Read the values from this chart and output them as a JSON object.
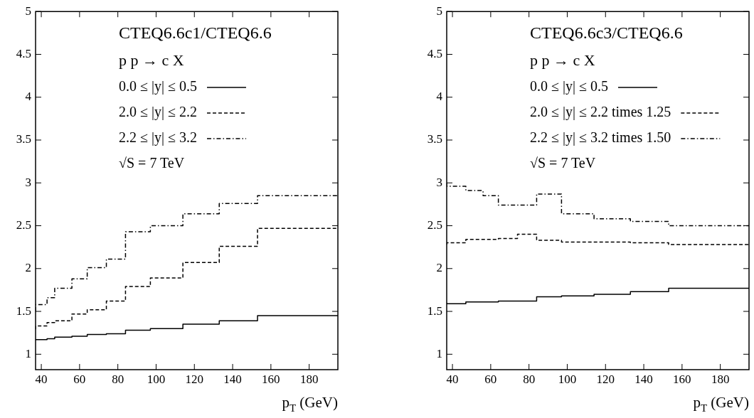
{
  "chart_data": [
    {
      "type": "step",
      "title": "CTEQ6.6c1/CTEQ6.6",
      "annotations": [
        "p p → c X",
        "√S = 7 TeV"
      ],
      "xlabel": "p$_{T}$ (GeV)",
      "x": [
        37,
        43,
        47,
        56,
        64,
        74,
        84,
        97,
        114,
        133,
        153,
        174,
        195
      ],
      "series": [
        {
          "name": "0.0 ≤ |y| ≤ 0.5",
          "color": "#000000",
          "line_style": "solid",
          "values": [
            1.17,
            1.17,
            1.18,
            1.2,
            1.21,
            1.23,
            1.24,
            1.28,
            1.3,
            1.35,
            1.39,
            1.45,
            1.45
          ]
        },
        {
          "name": "2.0 ≤ |y| ≤ 2.2",
          "color": "#000000",
          "line_style": "dashed",
          "values": [
            1.29,
            1.33,
            1.37,
            1.39,
            1.47,
            1.52,
            1.62,
            1.79,
            1.89,
            2.07,
            2.26,
            2.47,
            2.47
          ]
        },
        {
          "name": "2.2 ≤ |y| ≤ 3.2",
          "color": "#000000",
          "line_style": "dotted",
          "values": [
            1.5,
            1.58,
            1.66,
            1.77,
            1.88,
            2.01,
            2.11,
            2.43,
            2.5,
            2.64,
            2.76,
            2.85,
            2.85
          ]
        }
      ],
      "xlim": [
        37,
        195
      ],
      "ylim": [
        0.82,
        5
      ],
      "xticks": [
        40,
        60,
        80,
        100,
        120,
        140,
        160,
        180
      ],
      "yticks": [
        1,
        1.5,
        2,
        2.5,
        3,
        3.5,
        4,
        4.5,
        5
      ],
      "legend": "top"
    },
    {
      "type": "step",
      "title": "CTEQ6.6c3/CTEQ6.6",
      "annotations": [
        "p p → c X",
        "√S = 7 TeV"
      ],
      "xlabel": "p$_{T}$ (GeV)",
      "x": [
        37,
        43,
        47,
        56,
        64,
        74,
        84,
        97,
        114,
        133,
        153,
        174,
        195
      ],
      "series": [
        {
          "name": "0.0 ≤ |y| ≤ 0.5",
          "color": "#000000",
          "line_style": "solid",
          "values": [
            1.6,
            1.59,
            1.59,
            1.61,
            1.61,
            1.62,
            1.62,
            1.67,
            1.68,
            1.7,
            1.73,
            1.77,
            1.77
          ]
        },
        {
          "name": "2.0 ≤ |y| ≤ 2.2 times 1.25",
          "color": "#000000",
          "line_style": "dashed",
          "values": [
            2.28,
            2.3,
            2.3,
            2.34,
            2.34,
            2.35,
            2.4,
            2.33,
            2.31,
            2.31,
            2.3,
            2.28,
            2.28
          ]
        },
        {
          "name": "2.2 ≤ |y| ≤ 3.2 times 1.50",
          "color": "#000000",
          "line_style": "dotted",
          "values": [
            3.0,
            2.96,
            2.96,
            2.91,
            2.85,
            2.74,
            2.74,
            2.87,
            2.64,
            2.58,
            2.55,
            2.5,
            2.5
          ]
        }
      ],
      "xlim": [
        37,
        195
      ],
      "ylim": [
        0.82,
        5
      ],
      "xticks": [
        40,
        60,
        80,
        100,
        120,
        140,
        160,
        180
      ],
      "yticks": [
        1,
        1.5,
        2,
        2.5,
        3,
        3.5,
        4,
        4.5,
        5
      ],
      "legend": "top"
    }
  ]
}
